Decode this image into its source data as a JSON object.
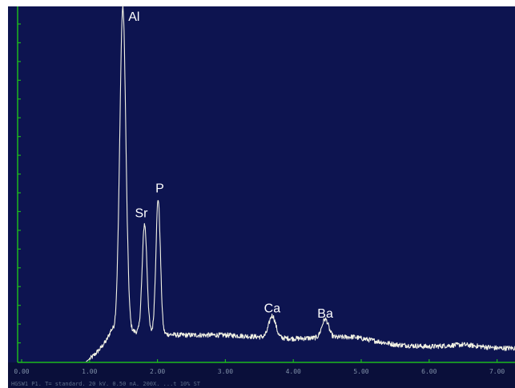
{
  "colors": {
    "plot_background": "#0d1450",
    "axis": "#1db81d",
    "spectrum": "#f2f2e4",
    "label_text": "#ffffff",
    "tick_text": "#7f8fa8"
  },
  "footer_caption": "HGSW1 P1. T= standard. 20 kV. 0.50 nA. 200X. ...t 10% ST",
  "chart_data": {
    "type": "line",
    "title": "",
    "xlabel": "",
    "ylabel": "",
    "xlim": [
      0,
      7.5
    ],
    "ylim": [
      0,
      100
    ],
    "x_ticks": [
      0,
      1,
      2,
      3,
      4,
      5,
      6,
      7
    ],
    "x_tick_labels": [
      "0.00",
      "1.00",
      "2.00",
      "3.00",
      "4.00",
      "5.00",
      "6.00",
      "7.00"
    ],
    "y_minor_tick_count": 18,
    "grid": false,
    "peaks": [
      {
        "label": "Al",
        "x": 1.49,
        "y": 100
      },
      {
        "label": "Sr",
        "x": 1.81,
        "y": 39
      },
      {
        "label": "P",
        "x": 2.01,
        "y": 46
      },
      {
        "label": "Ca",
        "x": 3.69,
        "y": 13
      },
      {
        "label": "Ba",
        "x": 4.47,
        "y": 12
      }
    ],
    "baseline_points": [
      {
        "x": 0.95,
        "y": 0
      },
      {
        "x": 1.05,
        "y": 1.5
      },
      {
        "x": 1.15,
        "y": 3.5
      },
      {
        "x": 1.25,
        "y": 6.0
      },
      {
        "x": 1.32,
        "y": 9.0
      },
      {
        "x": 2.3,
        "y": 7.5
      },
      {
        "x": 3.0,
        "y": 7.5
      },
      {
        "x": 3.5,
        "y": 7.0
      },
      {
        "x": 4.0,
        "y": 6.5
      },
      {
        "x": 4.88,
        "y": 7.0
      },
      {
        "x": 5.5,
        "y": 4.8
      },
      {
        "x": 6.0,
        "y": 4.2
      },
      {
        "x": 6.5,
        "y": 4.8
      },
      {
        "x": 7.0,
        "y": 3.8
      },
      {
        "x": 7.5,
        "y": 3.8
      }
    ]
  }
}
